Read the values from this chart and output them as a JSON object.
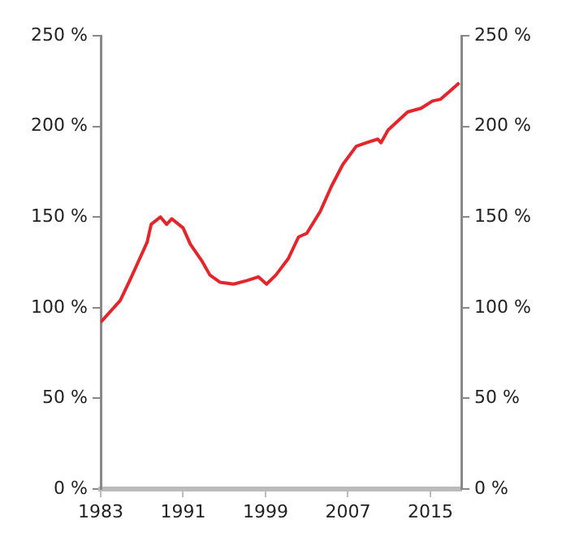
{
  "chart_data": {
    "type": "line",
    "x": [
      1983,
      1984.9,
      1985.9,
      1986.7,
      1987.5,
      1987.9,
      1988.8,
      1989.4,
      1989.9,
      1991,
      1991.7,
      1992.8,
      1993.6,
      1994.6,
      1995.9,
      1997.2,
      1998.3,
      1999.1,
      2000,
      2001.2,
      2002.2,
      2003,
      2004.3,
      2005.4,
      2006.5,
      2007.8,
      2008.8,
      2009.9,
      2010.2,
      2010.9,
      2012.8,
      2014.1,
      2015.2,
      2016,
      2016.8,
      2017.8
    ],
    "series": [
      {
        "color": "#e3262b",
        "values": [
          92,
          104,
          116,
          126,
          136,
          146,
          150,
          146,
          149,
          144,
          135,
          126,
          118,
          114,
          113,
          115,
          117,
          113,
          118,
          127,
          139,
          141,
          153,
          167,
          179,
          189,
          191,
          193,
          191,
          198,
          208,
          210,
          214,
          215,
          219,
          224
        ]
      }
    ],
    "xlim": [
      1983,
      2018
    ],
    "xticks": [
      1983,
      1991,
      1999,
      2007,
      2015
    ],
    "ylim": [
      0,
      250
    ],
    "yticks": [
      {
        "value": 0,
        "label": "0 %"
      },
      {
        "value": 50,
        "label": "50 %"
      },
      {
        "value": 100,
        "label": "100 %"
      },
      {
        "value": 150,
        "label": "150 %"
      },
      {
        "value": 200,
        "label": "200 %"
      },
      {
        "value": 250,
        "label": "250 %"
      }
    ],
    "y2lim": [
      0,
      250
    ],
    "y2ticks": [
      {
        "value": 0,
        "label": "0 %"
      },
      {
        "value": 50,
        "label": "50 %"
      },
      {
        "value": 100,
        "label": "100 %"
      },
      {
        "value": 150,
        "label": "150 %"
      },
      {
        "value": 200,
        "label": "200 %"
      },
      {
        "value": 250,
        "label": "250 %"
      }
    ],
    "grid": false,
    "legend": false,
    "marker": "none",
    "line_style": "solid"
  }
}
